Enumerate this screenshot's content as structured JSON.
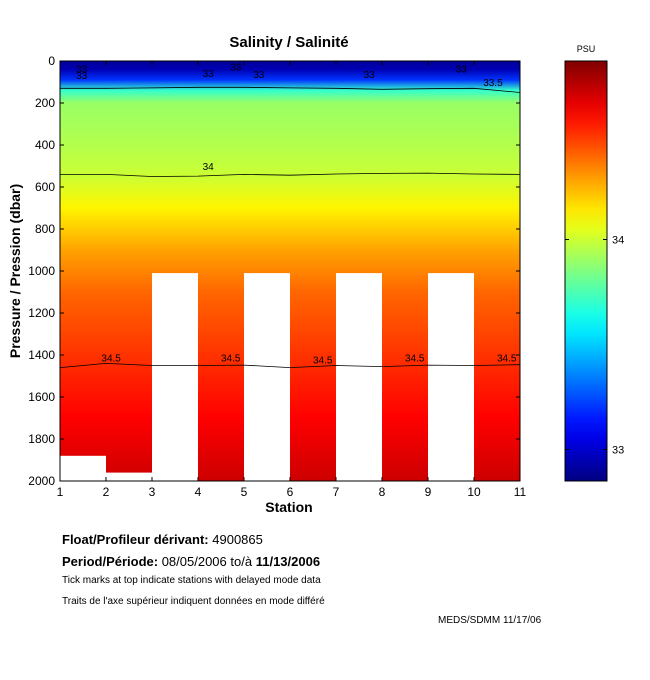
{
  "chart_data": {
    "type": "heatmap",
    "title": "Salinity / Salinité",
    "xlabel": "Station",
    "ylabel": "Pressure / Pression (dbar)",
    "xlim": [
      1,
      11
    ],
    "ylim": [
      0,
      2000
    ],
    "y_reversed": true,
    "xticks": [
      "1",
      "2",
      "3",
      "4",
      "5",
      "6",
      "7",
      "8",
      "9",
      "10",
      "11"
    ],
    "yticks": [
      "0",
      "200",
      "400",
      "600",
      "800",
      "1000",
      "1200",
      "1400",
      "1600",
      "1800",
      "2000"
    ],
    "colorbar": {
      "label": "PSU",
      "range": [
        32.85,
        34.85
      ],
      "ticks": [
        "33",
        "34"
      ],
      "tick_values": [
        33,
        34
      ]
    },
    "missing_regions": [
      {
        "x": [
          1,
          2
        ],
        "depth": [
          1880,
          2000
        ]
      },
      {
        "x": [
          2,
          3
        ],
        "depth": [
          1960,
          2000
        ]
      },
      {
        "x": [
          3,
          4
        ],
        "depth": [
          1010,
          2000
        ]
      },
      {
        "x": [
          5,
          6
        ],
        "depth": [
          1010,
          2000
        ]
      },
      {
        "x": [
          7,
          8
        ],
        "depth": [
          1010,
          2000
        ]
      },
      {
        "x": [
          9,
          10
        ],
        "depth": [
          1010,
          2000
        ]
      }
    ],
    "salinity_profile": [
      {
        "depth": 0,
        "value": 32.9
      },
      {
        "depth": 40,
        "value": 32.95
      },
      {
        "depth": 90,
        "value": 33.2
      },
      {
        "depth": 140,
        "value": 33.7
      },
      {
        "depth": 200,
        "value": 33.9
      },
      {
        "depth": 400,
        "value": 33.95
      },
      {
        "depth": 550,
        "value": 34.0
      },
      {
        "depth": 700,
        "value": 34.12
      },
      {
        "depth": 900,
        "value": 34.28
      },
      {
        "depth": 1100,
        "value": 34.4
      },
      {
        "depth": 1400,
        "value": 34.5
      },
      {
        "depth": 1700,
        "value": 34.6
      },
      {
        "depth": 2000,
        "value": 34.7
      }
    ],
    "contours": [
      {
        "level": "34",
        "points": [
          [
            1,
            540
          ],
          [
            2,
            540
          ],
          [
            3,
            550
          ],
          [
            4,
            548
          ],
          [
            5,
            540
          ],
          [
            6,
            544
          ],
          [
            7,
            538
          ],
          [
            8,
            535
          ],
          [
            9,
            534
          ],
          [
            10,
            538
          ],
          [
            11,
            540
          ]
        ]
      },
      {
        "level": "34.5",
        "points": [
          [
            1,
            1460
          ],
          [
            2,
            1440
          ],
          [
            3,
            1450
          ],
          [
            4,
            1450
          ],
          [
            5,
            1448
          ],
          [
            6,
            1460
          ],
          [
            7,
            1450
          ],
          [
            8,
            1455
          ],
          [
            9,
            1448
          ],
          [
            10,
            1450
          ],
          [
            11,
            1446
          ]
        ]
      },
      {
        "level": "33.5",
        "points": [
          [
            1,
            130
          ],
          [
            2,
            130
          ],
          [
            3,
            128
          ],
          [
            4,
            125
          ],
          [
            5,
            125
          ],
          [
            6,
            128
          ],
          [
            7,
            130
          ],
          [
            8,
            135
          ],
          [
            9,
            132
          ],
          [
            10,
            130
          ],
          [
            11,
            150
          ]
        ]
      }
    ],
    "contour_labels": [
      {
        "text": "33",
        "x": 1.35,
        "depth": 55
      },
      {
        "text": "33",
        "x": 1.35,
        "depth": 85
      },
      {
        "text": "33",
        "x": 4.1,
        "depth": 75
      },
      {
        "text": "33",
        "x": 4.7,
        "depth": 45
      },
      {
        "text": "33",
        "x": 5.2,
        "depth": 80
      },
      {
        "text": "33",
        "x": 7.6,
        "depth": 80
      },
      {
        "text": "33",
        "x": 9.6,
        "depth": 55
      },
      {
        "text": "33.5",
        "x": 10.2,
        "depth": 120
      },
      {
        "text": "34",
        "x": 4.1,
        "depth": 520
      },
      {
        "text": "34.5",
        "x": 1.9,
        "depth": 1430
      },
      {
        "text": "34.5",
        "x": 4.5,
        "depth": 1430
      },
      {
        "text": "34.5",
        "x": 6.5,
        "depth": 1440
      },
      {
        "text": "34.5",
        "x": 8.5,
        "depth": 1430
      },
      {
        "text": "34.5",
        "x": 10.5,
        "depth": 1430
      }
    ]
  },
  "info": {
    "float_label": "Float/Profileur dérivant:",
    "float_id": "4900865",
    "period_label": "Period/Période:",
    "period_start": "08/05/2006",
    "period_sep": "to/à",
    "period_end": "11/13/2006",
    "note_en": "Tick marks at top indicate stations with delayed mode data",
    "note_fr": "Traits de l'axe supérieur indiquent données en mode différé",
    "credit": "MEDS/SDMM  11/17/06"
  }
}
